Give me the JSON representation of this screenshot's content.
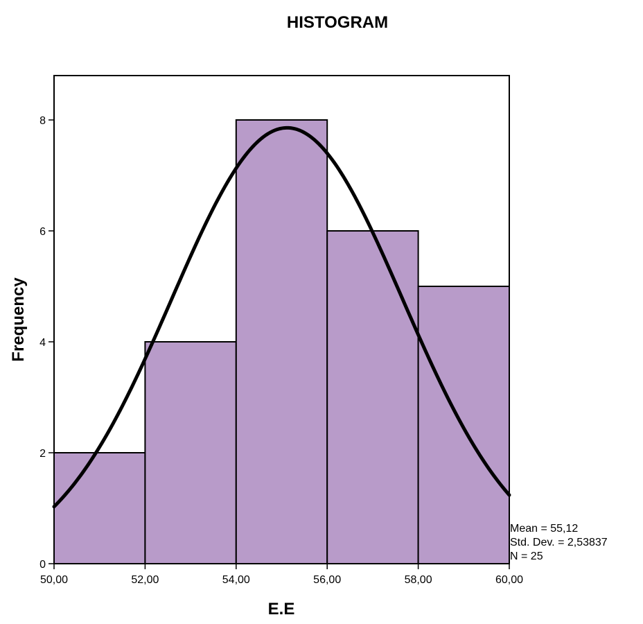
{
  "chart_data": {
    "type": "bar",
    "title": "HISTOGRAM",
    "xlabel": "E.E",
    "ylabel": "Frequency",
    "bin_edges": [
      50,
      52,
      54,
      56,
      58,
      60
    ],
    "values": [
      2,
      4,
      8,
      6,
      5
    ],
    "xlim": [
      50,
      60
    ],
    "ylim": [
      0,
      8.8
    ],
    "x_ticks": [
      50,
      52,
      54,
      56,
      58,
      60
    ],
    "x_tick_labels": [
      "50,00",
      "52,00",
      "54,00",
      "56,00",
      "58,00",
      "60,00"
    ],
    "y_ticks": [
      0,
      2,
      4,
      6,
      8
    ],
    "y_tick_labels": [
      "0",
      "2",
      "4",
      "6",
      "8"
    ],
    "grid": false,
    "normal_curve": {
      "mean": 55.12,
      "std_dev": 2.53837,
      "n": 25,
      "bin_width": 2
    },
    "stats": {
      "mean_text": "Mean = 55,12",
      "std_dev_text": "Std. Dev. = 2,53837",
      "n_text": "N = 25"
    },
    "colors": {
      "bar_fill": "#b89bc9",
      "bar_stroke": "#000000",
      "curve": "#000000",
      "frame": "#000000"
    }
  }
}
